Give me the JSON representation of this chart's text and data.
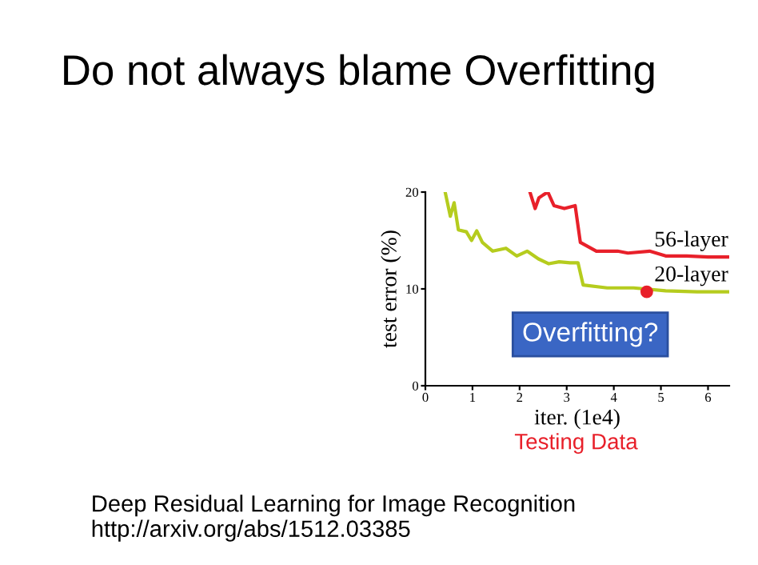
{
  "chart_data": {
    "type": "line",
    "title": "Do not always blame Overfitting",
    "xlabel": "iter. (1e4)",
    "ylabel": "test error (%)",
    "annotations": [
      "Overfitting?",
      "Testing Data",
      "Deep Residual Learning for Image Recognition\nhttp://arxiv.org/abs/1512.03385"
    ],
    "series": [
      {
        "name": "56-layer",
        "color": "#e8202a",
        "x": [
          2.22,
          2.33,
          2.41,
          2.5,
          2.6,
          2.73,
          2.95,
          3.18,
          3.29,
          3.63,
          4.08,
          4.3,
          4.76,
          5.1,
          5.55,
          6.0,
          6.43
        ],
        "values": [
          20,
          18.3,
          19.4,
          19.7,
          20,
          18.6,
          18.3,
          18.6,
          14.8,
          13.9,
          13.9,
          13.7,
          13.9,
          13.4,
          13.4,
          13.3,
          13.3
        ]
      },
      {
        "name": "20-layer",
        "color": "#b5cc1e",
        "x": [
          0.42,
          0.53,
          0.61,
          0.7,
          0.87,
          0.98,
          1.09,
          1.21,
          1.43,
          1.71,
          1.94,
          2.16,
          2.4,
          2.62,
          2.84,
          3.07,
          3.24,
          3.35,
          3.86,
          4.42,
          5.1,
          5.77,
          6.43
        ],
        "values": [
          20,
          17.5,
          18.9,
          16.1,
          15.9,
          15.0,
          16,
          14.8,
          13.9,
          14.2,
          13.4,
          13.9,
          13.1,
          12.6,
          12.8,
          12.7,
          12.7,
          10.4,
          10.1,
          10.1,
          9.8,
          9.7,
          9.7
        ]
      },
      {
        "type": "scatter",
        "color": "#e8202a",
        "x": [
          4.7
        ],
        "values": [
          9.7
        ],
        "marker": "circle"
      }
    ],
    "xlim": [
      0,
      6.45
    ],
    "ylim": [
      0,
      20
    ],
    "xticks": [
      0,
      1,
      2,
      3,
      4,
      5,
      6
    ],
    "yticks": [
      0,
      10,
      20
    ],
    "grid": false,
    "legend": false,
    "marker": "none"
  }
}
